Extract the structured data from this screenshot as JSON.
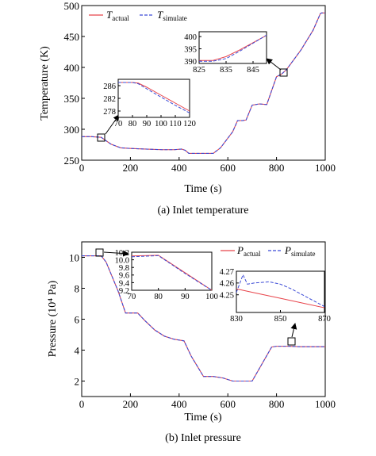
{
  "chart_data": [
    {
      "type": "line",
      "caption": "(a) Inlet temperature",
      "xlabel": "Time (s)",
      "ylabel": "Temperature (K)",
      "xlim": [
        0,
        1000
      ],
      "ylim": [
        250,
        500
      ],
      "xticks": [
        "0",
        "200",
        "400",
        "600",
        "800",
        "1000"
      ],
      "yticks": [
        "250",
        "300",
        "350",
        "400",
        "450",
        "500"
      ],
      "legend_position": "top-left",
      "series": [
        {
          "name_main": "T",
          "name_sub": "actual",
          "color": "#e8434a",
          "style": "solid",
          "x": [
            0,
            40,
            80,
            120,
            160,
            200,
            260,
            330,
            380,
            410,
            425,
            440,
            470,
            540,
            570,
            620,
            640,
            660,
            675,
            700,
            730,
            760,
            800,
            820,
            840,
            870,
            900,
            950,
            980,
            985,
            1000
          ],
          "y": [
            288,
            288,
            287,
            276,
            270,
            269,
            268,
            267,
            267,
            268,
            266,
            261,
            261,
            261,
            270,
            296,
            314,
            314,
            315,
            339,
            341,
            340,
            385,
            389,
            396,
            412,
            428,
            460,
            487,
            488,
            488
          ]
        },
        {
          "name_main": "T",
          "name_sub": "simulate",
          "color": "#3b4ad6",
          "style": "dashed",
          "x": [
            0,
            40,
            80,
            120,
            160,
            200,
            260,
            330,
            380,
            410,
            425,
            440,
            470,
            540,
            570,
            620,
            640,
            660,
            675,
            700,
            730,
            760,
            800,
            820,
            840,
            870,
            900,
            950,
            980,
            985,
            1000
          ],
          "y": [
            288,
            288,
            287,
            276,
            270,
            269,
            268,
            267,
            267,
            268,
            266,
            261,
            261,
            261,
            270,
            296,
            314,
            314,
            315,
            339,
            341,
            340,
            385,
            389,
            396,
            412,
            428,
            460,
            487,
            488,
            488
          ]
        }
      ],
      "insets": [
        {
          "xlim": [
            70,
            120
          ],
          "ylim": [
            276,
            288
          ],
          "xticks": [
            "70",
            "80",
            "90",
            "100",
            "110",
            "120"
          ],
          "yticks": [
            "278",
            "282",
            "286"
          ],
          "series": [
            {
              "x": [
                70,
                80,
                84,
                90,
                100,
                110,
                120
              ],
              "y": [
                287,
                287,
                286.8,
                285.5,
                283,
                280.5,
                278
              ]
            },
            {
              "x": [
                70,
                80,
                84,
                90,
                100,
                110,
                120
              ],
              "y": [
                287,
                287,
                286.6,
                285,
                282.4,
                279.8,
                277.4
              ]
            }
          ]
        },
        {
          "xlim": [
            825,
            850
          ],
          "ylim": [
            389,
            402
          ],
          "xticks": [
            "825",
            "835",
            "845"
          ],
          "yticks": [
            "390",
            "395",
            "400"
          ],
          "series": [
            {
              "x": [
                825,
                830,
                835,
                840,
                845,
                850
              ],
              "y": [
                390.2,
                390.2,
                391.8,
                394.5,
                397.5,
                400.5
              ]
            },
            {
              "x": [
                825,
                830,
                835,
                840,
                845,
                850
              ],
              "y": [
                389.9,
                389.9,
                391.0,
                394.0,
                397.3,
                400.6
              ]
            }
          ]
        }
      ]
    },
    {
      "type": "line",
      "caption": "(b) Inlet pressure",
      "xlabel": "Time (s)",
      "ylabel": "Pressure (10⁴ Pa)",
      "xlim": [
        0,
        1000
      ],
      "ylim": [
        1,
        11
      ],
      "xticks": [
        "0",
        "200",
        "400",
        "600",
        "800",
        "1000"
      ],
      "yticks": [
        "2",
        "4",
        "6",
        "8",
        "10"
      ],
      "legend_position": "top-right",
      "series": [
        {
          "name_main": "P",
          "name_sub": "actual",
          "color": "#e8434a",
          "style": "solid",
          "x": [
            0,
            80,
            100,
            150,
            180,
            230,
            260,
            300,
            340,
            380,
            420,
            450,
            500,
            540,
            580,
            620,
            700,
            780,
            800,
            850,
            900,
            1000
          ],
          "y": [
            10.1,
            10.1,
            9.7,
            7.8,
            6.4,
            6.4,
            5.9,
            5.3,
            4.9,
            4.7,
            4.6,
            3.6,
            2.3,
            2.3,
            2.2,
            2.0,
            2.0,
            4.2,
            4.25,
            4.25,
            4.22,
            4.22
          ]
        },
        {
          "name_main": "P",
          "name_sub": "simulate",
          "color": "#3b4ad6",
          "style": "dashed",
          "x": [
            0,
            80,
            100,
            150,
            180,
            230,
            260,
            300,
            340,
            380,
            420,
            450,
            500,
            540,
            580,
            620,
            700,
            780,
            800,
            850,
            900,
            1000
          ],
          "y": [
            10.1,
            10.1,
            9.7,
            7.8,
            6.4,
            6.4,
            5.9,
            5.3,
            4.9,
            4.7,
            4.6,
            3.6,
            2.3,
            2.3,
            2.2,
            2.0,
            2.0,
            4.2,
            4.25,
            4.25,
            4.22,
            4.22
          ]
        }
      ],
      "insets": [
        {
          "xlim": [
            70,
            100
          ],
          "ylim": [
            9.2,
            10.2
          ],
          "xticks": [
            "70",
            "80",
            "90",
            "100"
          ],
          "yticks": [
            "9.2",
            "9.4",
            "9.6",
            "9.8",
            "10.0",
            "10.2"
          ],
          "series": [
            {
              "x": [
                70,
                80,
                90,
                100
              ],
              "y": [
                10.1,
                10.12,
                9.66,
                9.2
              ]
            },
            {
              "x": [
                70,
                80,
                90,
                100
              ],
              "y": [
                10.08,
                10.11,
                9.64,
                9.18
              ]
            }
          ]
        },
        {
          "xlim": [
            830,
            870
          ],
          "ylim": [
            4.235,
            4.27
          ],
          "xticks": [
            "830",
            "850",
            "870"
          ],
          "yticks": [
            "4.25",
            "4.26",
            "4.27"
          ],
          "series": [
            {
              "x": [
                830,
                840,
                850,
                860,
                870
              ],
              "y": [
                4.255,
                4.251,
                4.247,
                4.243,
                4.239
              ]
            },
            {
              "x": [
                830,
                833,
                835,
                838,
                845,
                850,
                855,
                860,
                865,
                870
              ],
              "y": [
                4.252,
                4.267,
                4.259,
                4.26,
                4.261,
                4.259,
                4.255,
                4.25,
                4.245,
                4.24
              ]
            }
          ]
        }
      ]
    }
  ]
}
